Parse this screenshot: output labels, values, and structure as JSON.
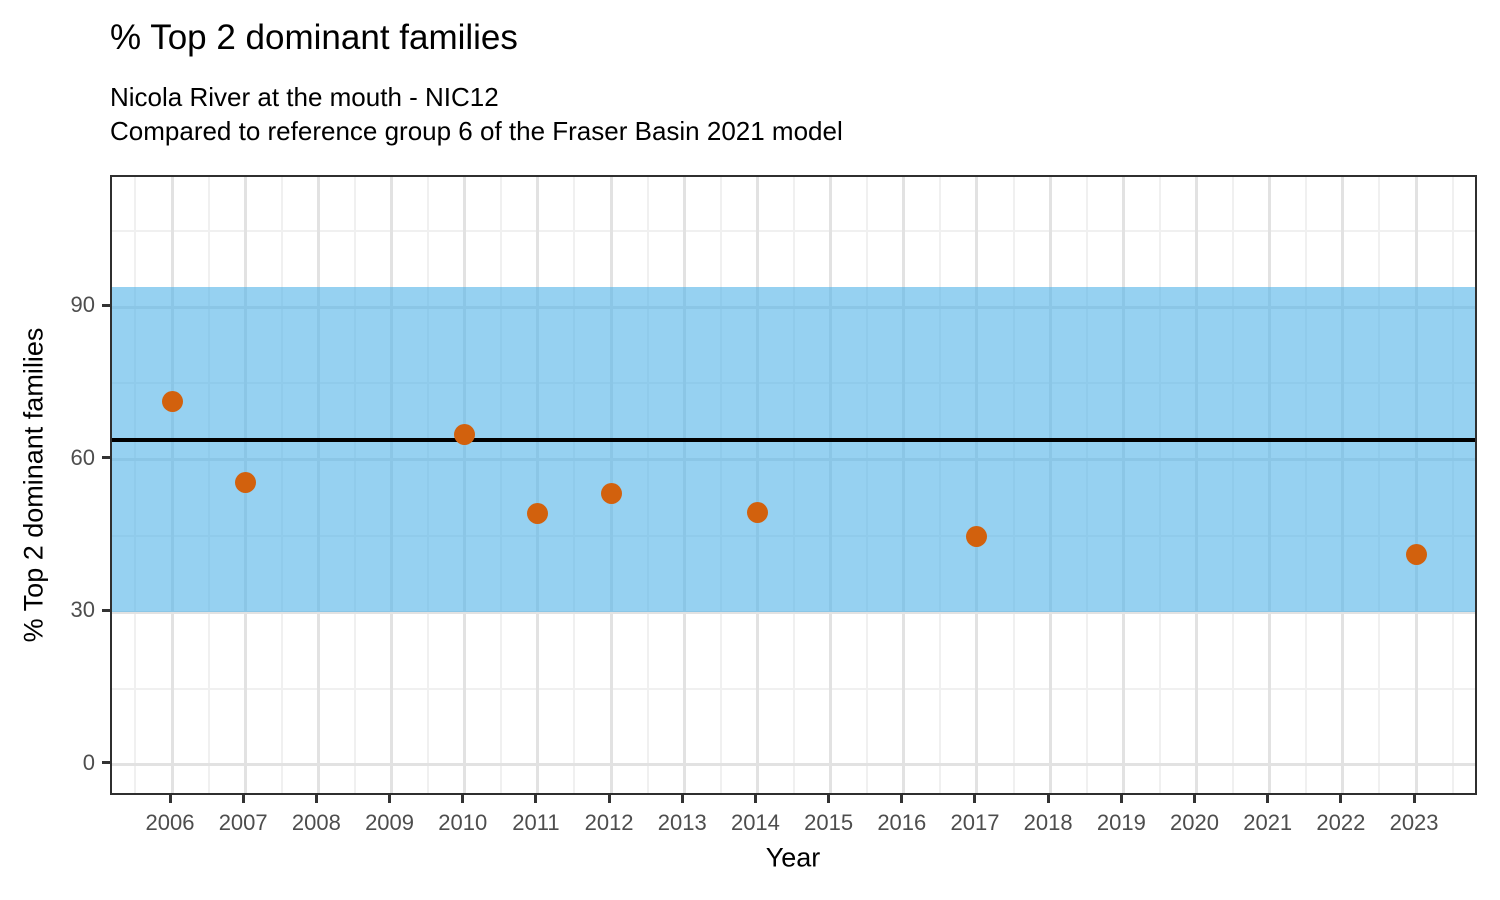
{
  "header": {
    "title": "% Top 2 dominant families",
    "subtitle_line1": "Nicola River at the mouth - NIC12",
    "subtitle_line2": "Compared to reference group 6 of the Fraser Basin 2021 model"
  },
  "chart_data": {
    "type": "scatter",
    "title": "% Top 2 dominant families",
    "subtitle_line1": "Nicola River at the mouth - NIC12",
    "subtitle_line2": "Compared to reference group 6 of the Fraser Basin 2021 model",
    "xlabel": "Year",
    "ylabel": "% Top 2 dominant families",
    "points": [
      {
        "year": 2006,
        "value": 71.5
      },
      {
        "year": 2007,
        "value": 55.5
      },
      {
        "year": 2010,
        "value": 64.9
      },
      {
        "year": 2011,
        "value": 49.4
      },
      {
        "year": 2012,
        "value": 53.4
      },
      {
        "year": 2014,
        "value": 49.7
      },
      {
        "year": 2017,
        "value": 45.0
      },
      {
        "year": 2023,
        "value": 41.3
      }
    ],
    "x_ticks": [
      2006,
      2007,
      2008,
      2009,
      2010,
      2011,
      2012,
      2013,
      2014,
      2015,
      2016,
      2017,
      2018,
      2019,
      2020,
      2021,
      2022,
      2023
    ],
    "x_minor_ticks": [
      2005.5,
      2006.5,
      2007.5,
      2008.5,
      2009.5,
      2010.5,
      2011.5,
      2012.5,
      2013.5,
      2014.5,
      2015.5,
      2016.5,
      2017.5,
      2018.5,
      2019.5,
      2020.5,
      2021.5,
      2022.5,
      2023.5
    ],
    "y_ticks": [
      0,
      30,
      60,
      90
    ],
    "y_minor_ticks": [
      15,
      45,
      75,
      105
    ],
    "xlim": [
      2005.18,
      2023.86
    ],
    "ylim": [
      -6.3,
      115.6
    ],
    "grid": true,
    "legend": "none",
    "reference_band": {
      "ymin": 30,
      "ymax": 93.9,
      "color": "#56B4E9",
      "opacity": 0.62
    },
    "reference_line": {
      "value": 63.8,
      "color": "#000000"
    },
    "point_color": "#D2610D"
  }
}
